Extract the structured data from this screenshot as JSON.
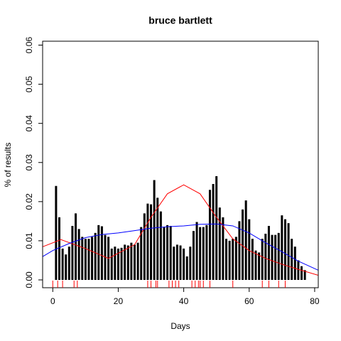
{
  "chart_data": {
    "type": "histline",
    "title": "bruce bartlett",
    "xlabel": "Days",
    "ylabel": "% of results",
    "x": [
      1,
      2,
      3,
      4,
      5,
      6,
      7,
      8,
      9,
      10,
      11,
      12,
      13,
      14,
      15,
      16,
      17,
      18,
      19,
      20,
      21,
      22,
      23,
      24,
      25,
      26,
      27,
      28,
      29,
      30,
      31,
      32,
      33,
      34,
      35,
      36,
      37,
      38,
      39,
      40,
      41,
      42,
      43,
      44,
      45,
      46,
      47,
      48,
      49,
      50,
      51,
      52,
      53,
      54,
      55,
      56,
      57,
      58,
      59,
      60,
      61,
      62,
      63,
      64,
      65,
      66,
      67,
      68,
      69,
      70,
      71,
      72,
      73,
      74,
      75,
      76,
      77
    ],
    "values": [
      0.024,
      0.016,
      0.008,
      0.0065,
      0.0085,
      0.0138,
      0.017,
      0.013,
      0.011,
      0.0105,
      0.0105,
      0.011,
      0.012,
      0.014,
      0.0137,
      0.0115,
      0.011,
      0.008,
      0.0085,
      0.008,
      0.0082,
      0.009,
      0.0088,
      0.0095,
      0.009,
      0.0095,
      0.0135,
      0.017,
      0.0195,
      0.0193,
      0.0255,
      0.021,
      0.0175,
      0.0135,
      0.014,
      0.0138,
      0.0085,
      0.009,
      0.0088,
      0.008,
      0.006,
      0.0085,
      0.0125,
      0.0148,
      0.0135,
      0.0135,
      0.014,
      0.023,
      0.0245,
      0.0265,
      0.0185,
      0.016,
      0.0105,
      0.01,
      0.0105,
      0.011,
      0.015,
      0.018,
      0.0203,
      0.0155,
      0.0105,
      0.0075,
      0.007,
      0.0105,
      0.0118,
      0.0138,
      0.0115,
      0.0115,
      0.012,
      0.0165,
      0.0155,
      0.0145,
      0.0105,
      0.0085,
      0.005,
      0.0035,
      0.0025
    ],
    "color": "#000000",
    "curves": [
      {
        "color": "#ff0000",
        "x": [
          -3,
          2.5,
          10,
          17,
          25,
          30,
          35,
          40,
          45,
          50,
          55,
          60,
          65,
          70,
          75,
          81
        ],
        "values": [
          0.0085,
          0.0103,
          0.008,
          0.0055,
          0.009,
          0.016,
          0.022,
          0.0243,
          0.022,
          0.016,
          0.0105,
          0.0075,
          0.0055,
          0.004,
          0.0027,
          0.0012
        ]
      },
      {
        "color": "#0000ff",
        "x": [
          -3,
          0,
          5,
          10,
          15,
          20,
          25,
          30,
          35,
          40,
          45,
          50,
          55,
          60,
          65,
          70,
          75,
          81
        ],
        "values": [
          0.006,
          0.0075,
          0.0093,
          0.0108,
          0.0116,
          0.012,
          0.0126,
          0.0132,
          0.0136,
          0.0138,
          0.0142,
          0.0143,
          0.0138,
          0.012,
          0.0095,
          0.0072,
          0.0048,
          0.0025
        ]
      }
    ],
    "rug": {
      "color": "#ff0000",
      "x": [
        0,
        1.5,
        3,
        6.5,
        7.5,
        29,
        30,
        31.5,
        32,
        35.5,
        36.5,
        37.5,
        38.5,
        42.5,
        43.5,
        44.5,
        45,
        46,
        48,
        55,
        64,
        66,
        69,
        71
      ]
    },
    "xlim": [
      -3.1,
      81.1
    ],
    "ylim": [
      -0.002,
      0.061
    ],
    "xticks": [
      0,
      20,
      40,
      60,
      80
    ],
    "yticks": [
      {
        "value": 0,
        "label": "0.00"
      },
      {
        "value": 0.01,
        "label": "0.01"
      },
      {
        "value": 0.02,
        "label": "0.02"
      },
      {
        "value": 0.03,
        "label": "0.03"
      },
      {
        "value": 0.04,
        "label": "0.04"
      },
      {
        "value": 0.05,
        "label": "0.05"
      },
      {
        "value": 0.06,
        "label": "0.06"
      }
    ]
  }
}
